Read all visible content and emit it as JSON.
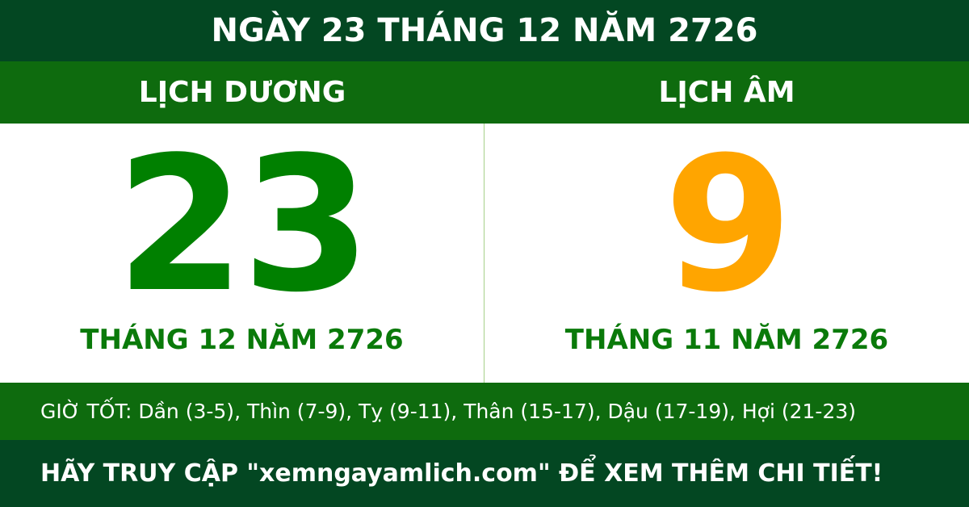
{
  "title": "NGÀY 23 THÁNG 12 NĂM 2726",
  "solar": {
    "label": "LỊCH DƯƠNG",
    "day": "23",
    "month_year": "THÁNG 12 NĂM 2726"
  },
  "lunar": {
    "label": "LỊCH ÂM",
    "day": "9",
    "month_year": "THÁNG 11 NĂM 2726"
  },
  "good_hours": "GIỜ TỐT: Dần (3-5), Thìn (7-9), Tỵ (9-11), Thân (15-17), Dậu (17-19), Hợi (21-23)",
  "footer": "HÃY TRUY CẬP \"xemngayamlich.com\" ĐỂ XEM THÊM CHI TIẾT!",
  "colors": {
    "dark_green": "#034722",
    "mid_green": "#0e6b0e",
    "solar_green": "#008000",
    "lunar_orange": "#ffa500"
  }
}
